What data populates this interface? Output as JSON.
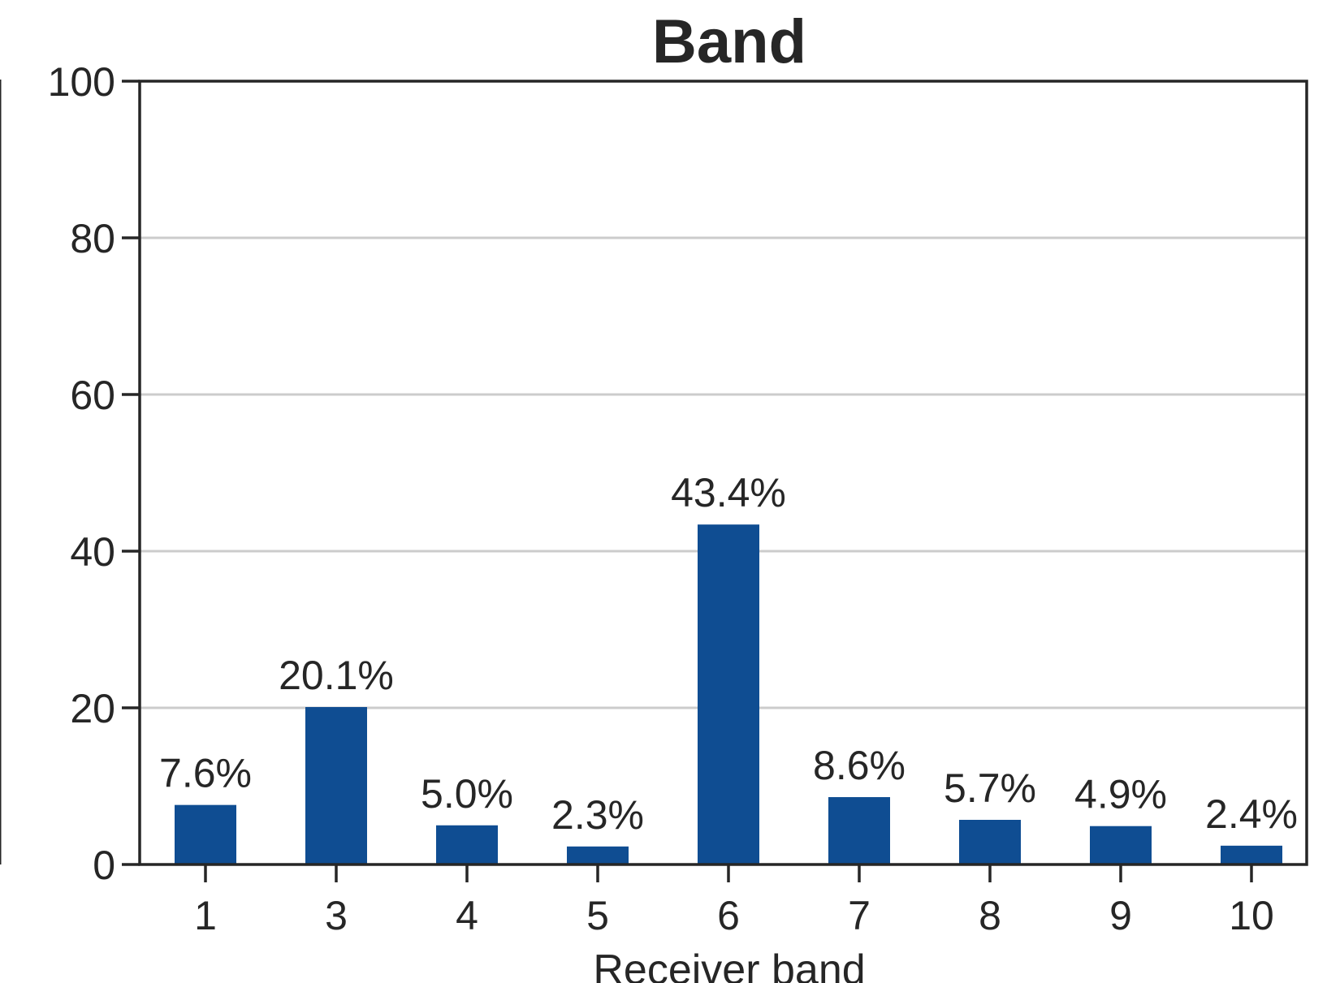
{
  "chart_data": {
    "type": "bar",
    "title": "Band",
    "xlabel": "Receiver band",
    "ylabel": "",
    "categories": [
      "1",
      "3",
      "4",
      "5",
      "6",
      "7",
      "8",
      "9",
      "10"
    ],
    "values": [
      7.6,
      20.1,
      5.0,
      2.3,
      43.4,
      8.6,
      5.7,
      4.9,
      2.4
    ],
    "data_labels": [
      "7.6%",
      "20.1%",
      "5.0%",
      "2.3%",
      "43.4%",
      "8.6%",
      "5.7%",
      "4.9%",
      "2.4%"
    ],
    "ylim": [
      0,
      100
    ],
    "yticks": [
      "0",
      "20",
      "40",
      "60",
      "80",
      "100"
    ],
    "grid": true,
    "bar_color": "#0f4d92"
  }
}
